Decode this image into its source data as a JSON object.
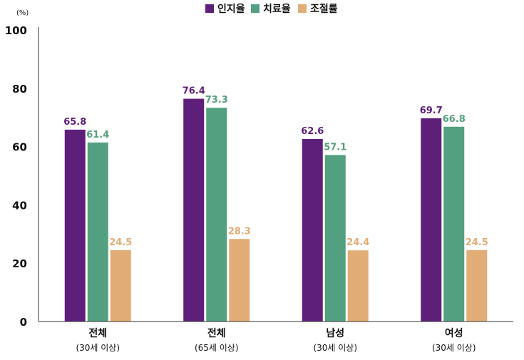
{
  "chart_data": {
    "type": "bar",
    "unit_label": "(%)",
    "ylim": [
      0,
      100
    ],
    "yticks": [
      0,
      20,
      40,
      60,
      80,
      100
    ],
    "grid": false,
    "legend_position": "top-center",
    "categories": [
      {
        "line1": "전체",
        "line2": "(30세 이상)"
      },
      {
        "line1": "전체",
        "line2": "(65세 이상)"
      },
      {
        "line1": "남성",
        "line2": "(30세 이상)"
      },
      {
        "line1": "여성",
        "line2": "(30세 이상)"
      }
    ],
    "series": [
      {
        "name": "인지율",
        "color": "#5e1f7a",
        "label_color": "#5e1f7a",
        "values": [
          65.8,
          76.4,
          62.6,
          69.7
        ],
        "labels": [
          "65.8",
          "76.4",
          "62.6",
          "69.7"
        ]
      },
      {
        "name": "치료율",
        "color": "#52a07f",
        "label_color": "#52a07f",
        "values": [
          61.4,
          73.3,
          57.1,
          66.8
        ],
        "labels": [
          "61.4",
          "73.3",
          "57.1",
          "66.8"
        ]
      },
      {
        "name": "조절률",
        "color": "#e1ac76",
        "label_color": "#e1ac76",
        "values": [
          24.5,
          28.3,
          24.4,
          24.5
        ],
        "labels": [
          "24.5",
          "28.3",
          "24.4",
          "24.5"
        ]
      }
    ]
  }
}
